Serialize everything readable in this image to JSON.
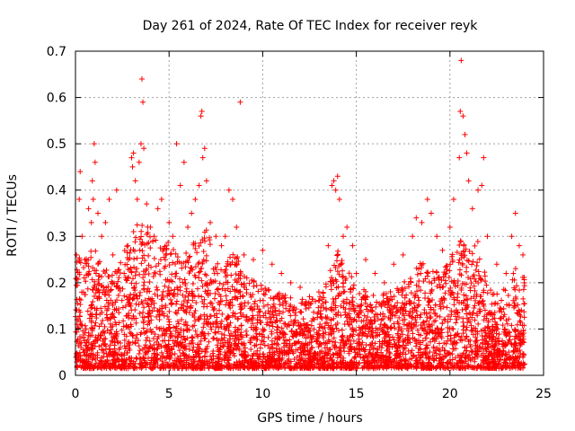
{
  "chart_data": {
    "type": "scatter",
    "title": "Day 261 of 2024, Rate Of TEC Index for receiver reyk",
    "xlabel": "GPS time / hours",
    "ylabel": "ROTI / TECUs",
    "xlim": [
      0,
      25
    ],
    "ylim": [
      0,
      0.7
    ],
    "x_ticks": [
      0,
      5,
      10,
      15,
      20,
      25
    ],
    "y_ticks": [
      0,
      0.1,
      0.2,
      0.3,
      0.4,
      0.5,
      0.6,
      0.7
    ],
    "x_tick_labels": [
      "0",
      "5",
      "10",
      "15",
      "20",
      "25"
    ],
    "y_tick_labels": [
      "0",
      "0.1",
      "0.2",
      "0.3",
      "0.4",
      "0.5",
      "0.6",
      "0.7"
    ],
    "grid": true,
    "marker": "+",
    "color": "#ff0000",
    "series": [
      {
        "name": "ROTI",
        "points": [
          [
            0.05,
            0.26
          ],
          [
            0.1,
            0.02
          ],
          [
            0.15,
            0.12
          ],
          [
            0.2,
            0.38
          ],
          [
            0.25,
            0.44
          ],
          [
            0.3,
            0.06
          ],
          [
            0.35,
            0.3
          ],
          [
            0.4,
            0.03
          ],
          [
            0.5,
            0.25
          ],
          [
            0.6,
            0.03
          ],
          [
            0.7,
            0.36
          ],
          [
            0.75,
            0.02
          ],
          [
            0.85,
            0.33
          ],
          [
            0.9,
            0.42
          ],
          [
            0.95,
            0.38
          ],
          [
            1.0,
            0.5
          ],
          [
            1.05,
            0.46
          ],
          [
            1.1,
            0.22
          ],
          [
            1.2,
            0.35
          ],
          [
            1.4,
            0.3
          ],
          [
            1.6,
            0.33
          ],
          [
            1.8,
            0.38
          ],
          [
            2.0,
            0.26
          ],
          [
            2.2,
            0.4
          ],
          [
            2.4,
            0.06
          ],
          [
            2.6,
            0.22
          ],
          [
            2.8,
            0.28
          ],
          [
            3.0,
            0.47
          ],
          [
            3.05,
            0.45
          ],
          [
            3.1,
            0.48
          ],
          [
            3.2,
            0.42
          ],
          [
            3.3,
            0.38
          ],
          [
            3.4,
            0.46
          ],
          [
            3.5,
            0.5
          ],
          [
            3.55,
            0.64
          ],
          [
            3.6,
            0.59
          ],
          [
            3.65,
            0.49
          ],
          [
            3.8,
            0.37
          ],
          [
            4.0,
            0.32
          ],
          [
            4.2,
            0.3
          ],
          [
            4.4,
            0.36
          ],
          [
            4.6,
            0.38
          ],
          [
            4.8,
            0.25
          ],
          [
            5.0,
            0.33
          ],
          [
            5.2,
            0.3
          ],
          [
            5.4,
            0.5
          ],
          [
            5.6,
            0.41
          ],
          [
            5.8,
            0.46
          ],
          [
            6.0,
            0.32
          ],
          [
            6.2,
            0.35
          ],
          [
            6.4,
            0.38
          ],
          [
            6.6,
            0.41
          ],
          [
            6.7,
            0.56
          ],
          [
            6.75,
            0.57
          ],
          [
            6.8,
            0.47
          ],
          [
            6.9,
            0.49
          ],
          [
            7.0,
            0.42
          ],
          [
            7.2,
            0.33
          ],
          [
            7.5,
            0.3
          ],
          [
            7.8,
            0.28
          ],
          [
            8.0,
            0.3
          ],
          [
            8.2,
            0.4
          ],
          [
            8.4,
            0.38
          ],
          [
            8.6,
            0.32
          ],
          [
            8.8,
            0.59
          ],
          [
            9.0,
            0.26
          ],
          [
            9.5,
            0.25
          ],
          [
            10.0,
            0.27
          ],
          [
            10.5,
            0.24
          ],
          [
            11.0,
            0.22
          ],
          [
            11.5,
            0.2
          ],
          [
            12.0,
            0.19
          ],
          [
            12.5,
            0.17
          ],
          [
            13.0,
            0.18
          ],
          [
            13.5,
            0.28
          ],
          [
            13.7,
            0.41
          ],
          [
            13.8,
            0.42
          ],
          [
            13.9,
            0.4
          ],
          [
            14.0,
            0.43
          ],
          [
            14.1,
            0.38
          ],
          [
            14.3,
            0.3
          ],
          [
            14.5,
            0.32
          ],
          [
            14.8,
            0.28
          ],
          [
            15.0,
            0.22
          ],
          [
            15.5,
            0.25
          ],
          [
            16.0,
            0.22
          ],
          [
            16.5,
            0.2
          ],
          [
            17.0,
            0.24
          ],
          [
            17.5,
            0.26
          ],
          [
            18.0,
            0.3
          ],
          [
            18.2,
            0.34
          ],
          [
            18.5,
            0.33
          ],
          [
            18.8,
            0.38
          ],
          [
            19.0,
            0.35
          ],
          [
            19.3,
            0.3
          ],
          [
            19.6,
            0.27
          ],
          [
            20.0,
            0.32
          ],
          [
            20.2,
            0.38
          ],
          [
            20.5,
            0.47
          ],
          [
            20.55,
            0.57
          ],
          [
            20.6,
            0.68
          ],
          [
            20.7,
            0.56
          ],
          [
            20.8,
            0.52
          ],
          [
            20.9,
            0.48
          ],
          [
            21.0,
            0.42
          ],
          [
            21.2,
            0.36
          ],
          [
            21.5,
            0.4
          ],
          [
            21.7,
            0.41
          ],
          [
            21.8,
            0.47
          ],
          [
            22.0,
            0.3
          ],
          [
            22.5,
            0.24
          ],
          [
            23.0,
            0.22
          ],
          [
            23.3,
            0.3
          ],
          [
            23.5,
            0.35
          ],
          [
            23.7,
            0.28
          ],
          [
            23.9,
            0.26
          ]
        ]
      }
    ]
  }
}
